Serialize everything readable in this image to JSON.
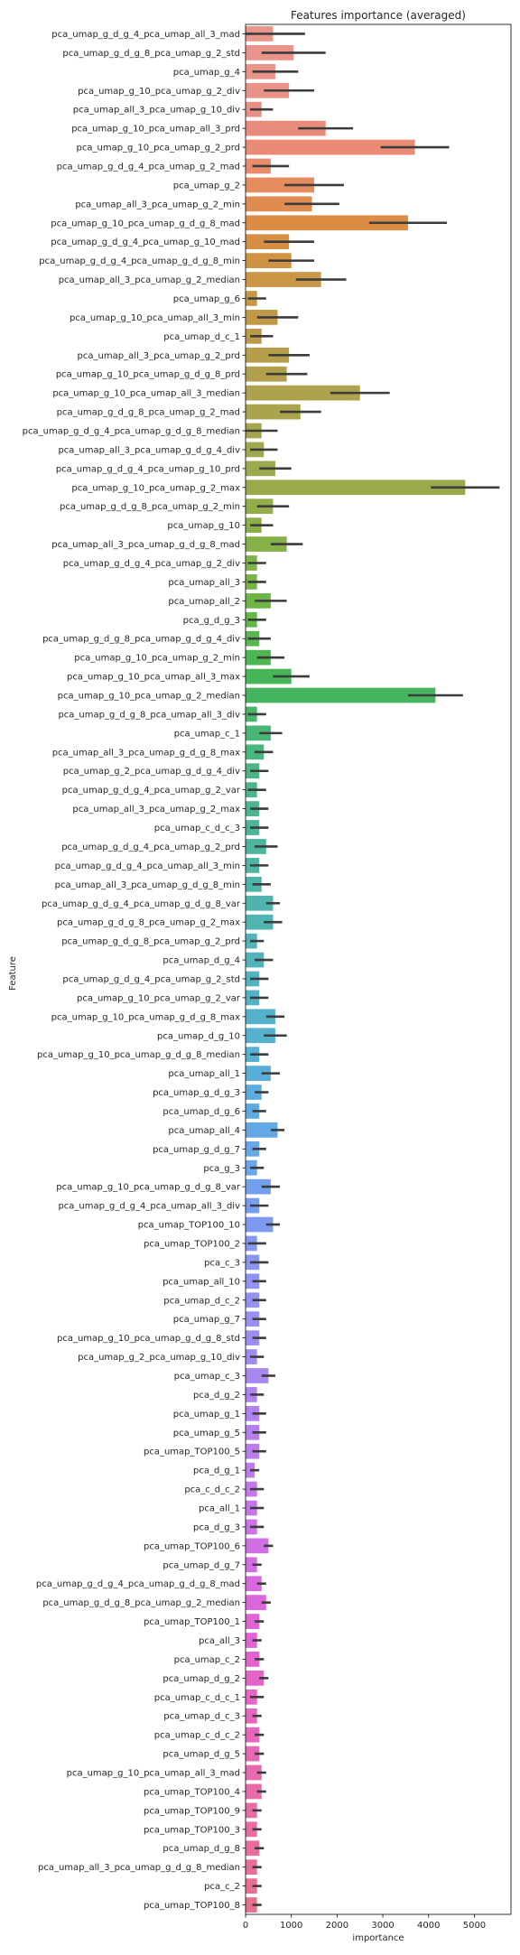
{
  "chart_data": {
    "type": "bar",
    "orientation": "horizontal",
    "title": "Features importance (averaged)",
    "xlabel": "importance",
    "ylabel": "Feature",
    "xlim": [
      0,
      5800
    ],
    "xticks": [
      0,
      1000,
      2000,
      3000,
      4000,
      5000
    ],
    "categories": [
      "pca_umap_g_d_g_4_pca_umap_all_3_mad",
      "pca_umap_g_d_g_8_pca_umap_g_2_std",
      "pca_umap_g_4",
      "pca_umap_g_10_pca_umap_g_2_div",
      "pca_umap_all_3_pca_umap_g_10_div",
      "pca_umap_g_10_pca_umap_all_3_prd",
      "pca_umap_g_10_pca_umap_g_2_prd",
      "pca_umap_g_d_g_4_pca_umap_g_2_mad",
      "pca_umap_g_2",
      "pca_umap_all_3_pca_umap_g_2_min",
      "pca_umap_g_10_pca_umap_g_d_g_8_mad",
      "pca_umap_g_d_g_4_pca_umap_g_10_mad",
      "pca_umap_g_d_g_4_pca_umap_g_d_g_8_min",
      "pca_umap_all_3_pca_umap_g_2_median",
      "pca_umap_g_6",
      "pca_umap_g_10_pca_umap_all_3_min",
      "pca_umap_d_c_1",
      "pca_umap_all_3_pca_umap_g_2_prd",
      "pca_umap_g_10_pca_umap_g_d_g_8_prd",
      "pca_umap_g_10_pca_umap_all_3_median",
      "pca_umap_g_d_g_8_pca_umap_g_2_mad",
      "pca_umap_g_d_g_4_pca_umap_g_d_g_8_median",
      "pca_umap_all_3_pca_umap_g_d_g_4_div",
      "pca_umap_g_d_g_4_pca_umap_g_10_prd",
      "pca_umap_g_10_pca_umap_g_2_max",
      "pca_umap_g_d_g_8_pca_umap_g_2_min",
      "pca_umap_g_10",
      "pca_umap_all_3_pca_umap_g_d_g_8_mad",
      "pca_umap_g_d_g_4_pca_umap_g_2_div",
      "pca_umap_all_3",
      "pca_umap_all_2",
      "pca_g_d_g_3",
      "pca_umap_g_d_g_8_pca_umap_g_d_g_4_div",
      "pca_umap_g_10_pca_umap_g_2_min",
      "pca_umap_g_10_pca_umap_all_3_max",
      "pca_umap_g_10_pca_umap_g_2_median",
      "pca_umap_g_d_g_8_pca_umap_all_3_div",
      "pca_umap_c_1",
      "pca_umap_all_3_pca_umap_g_d_g_8_max",
      "pca_umap_g_2_pca_umap_g_d_g_4_div",
      "pca_umap_g_d_g_4_pca_umap_g_2_var",
      "pca_umap_all_3_pca_umap_g_2_max",
      "pca_umap_c_d_c_3",
      "pca_umap_g_d_g_4_pca_umap_g_2_prd",
      "pca_umap_g_d_g_4_pca_umap_all_3_min",
      "pca_umap_all_3_pca_umap_g_d_g_8_min",
      "pca_umap_g_d_g_4_pca_umap_g_d_g_8_var",
      "pca_umap_g_d_g_8_pca_umap_g_2_max",
      "pca_umap_g_d_g_8_pca_umap_g_2_prd",
      "pca_umap_d_g_4",
      "pca_umap_g_d_g_4_pca_umap_g_2_std",
      "pca_umap_g_10_pca_umap_g_2_var",
      "pca_umap_g_10_pca_umap_g_d_g_8_max",
      "pca_umap_d_g_10",
      "pca_umap_g_10_pca_umap_g_d_g_8_median",
      "pca_umap_all_1",
      "pca_umap_g_d_g_3",
      "pca_umap_d_g_6",
      "pca_umap_all_4",
      "pca_umap_g_d_g_7",
      "pca_g_3",
      "pca_umap_g_10_pca_umap_g_d_g_8_var",
      "pca_umap_g_d_g_4_pca_umap_all_3_div",
      "pca_umap_TOP100_10",
      "pca_umap_TOP100_2",
      "pca_c_3",
      "pca_umap_all_10",
      "pca_umap_d_c_2",
      "pca_umap_g_7",
      "pca_umap_g_10_pca_umap_g_d_g_8_std",
      "pca_umap_g_2_pca_umap_g_10_div",
      "pca_umap_c_3",
      "pca_d_g_2",
      "pca_umap_g_1",
      "pca_umap_g_5",
      "pca_umap_TOP100_5",
      "pca_d_g_1",
      "pca_c_d_c_2",
      "pca_all_1",
      "pca_d_g_3",
      "pca_umap_TOP100_6",
      "pca_umap_d_g_7",
      "pca_umap_g_d_g_4_pca_umap_g_d_g_8_mad",
      "pca_umap_g_d_g_8_pca_umap_g_2_median",
      "pca_umap_TOP100_1",
      "pca_all_3",
      "pca_umap_c_2",
      "pca_umap_d_g_2",
      "pca_umap_c_d_c_1",
      "pca_umap_d_c_3",
      "pca_umap_c_d_c_2",
      "pca_umap_d_g_5",
      "pca_umap_g_10_pca_umap_all_3_mad",
      "pca_umap_TOP100_4",
      "pca_umap_TOP100_9",
      "pca_umap_TOP100_3",
      "pca_umap_d_g_8",
      "pca_umap_all_3_pca_umap_g_d_g_8_median",
      "pca_c_2",
      "pca_umap_TOP100_8"
    ],
    "values": [
      600,
      1050,
      650,
      950,
      350,
      1750,
      3700,
      550,
      1500,
      1450,
      3550,
      950,
      1000,
      1650,
      250,
      700,
      350,
      950,
      900,
      2500,
      1200,
      350,
      400,
      650,
      4800,
      600,
      350,
      900,
      250,
      250,
      550,
      250,
      300,
      550,
      1000,
      4150,
      250,
      550,
      400,
      300,
      250,
      300,
      300,
      450,
      300,
      350,
      600,
      600,
      250,
      400,
      300,
      300,
      650,
      650,
      300,
      550,
      350,
      300,
      700,
      300,
      250,
      550,
      300,
      600,
      250,
      300,
      300,
      300,
      300,
      300,
      250,
      500,
      250,
      300,
      300,
      300,
      200,
      250,
      250,
      250,
      500,
      250,
      350,
      450,
      300,
      250,
      300,
      400,
      250,
      250,
      300,
      300,
      350,
      350,
      250,
      250,
      300,
      250,
      250,
      250
    ],
    "errors": [
      700,
      700,
      500,
      550,
      250,
      600,
      750,
      400,
      650,
      600,
      850,
      550,
      500,
      550,
      200,
      450,
      250,
      450,
      450,
      650,
      450,
      350,
      300,
      350,
      750,
      350,
      250,
      350,
      200,
      200,
      350,
      200,
      250,
      300,
      400,
      600,
      200,
      250,
      200,
      200,
      200,
      200,
      200,
      250,
      200,
      200,
      150,
      200,
      150,
      200,
      200,
      200,
      200,
      250,
      200,
      200,
      150,
      150,
      150,
      150,
      150,
      200,
      200,
      150,
      200,
      200,
      150,
      150,
      150,
      150,
      150,
      150,
      150,
      150,
      150,
      150,
      100,
      150,
      150,
      150,
      100,
      100,
      100,
      100,
      100,
      100,
      100,
      100,
      150,
      100,
      100,
      100,
      100,
      100,
      100,
      100,
      100,
      100,
      100,
      100
    ],
    "colors": [
      "#ea958a",
      "#e9938a",
      "#e99489",
      "#e99287",
      "#e99085",
      "#e98c7b",
      "#ea8b76",
      "#e98c6d",
      "#e58c5e",
      "#e08b50",
      "#dd8c46",
      "#d68f43",
      "#d09344",
      "#cb9646",
      "#c59747",
      "#c09948",
      "#bb9b49",
      "#b79e4b",
      "#b2a04c",
      "#aea24c",
      "#aaa44d",
      "#a6a54d",
      "#a2a84d",
      "#9da94d",
      "#98aa4c",
      "#93ad4b",
      "#8daf4a",
      "#86b149",
      "#7fb247",
      "#77b347",
      "#6eb548",
      "#64b64a",
      "#59b74d",
      "#4db650",
      "#47b658",
      "#46b562",
      "#47b66b",
      "#48b674",
      "#49b67c",
      "#4bb683",
      "#4bb68a",
      "#4db690",
      "#4db597",
      "#4eb59d",
      "#4eb5a2",
      "#4fb5a8",
      "#50b4ad",
      "#50b4b2",
      "#51b4b7",
      "#52b3bb",
      "#53b3c0",
      "#54b2c5",
      "#55b1c9",
      "#55b1cd",
      "#57b0d2",
      "#58aed6",
      "#5aaddc",
      "#5dabe1",
      "#62a8e5",
      "#66a6e9",
      "#6ca3eb",
      "#72a0ec",
      "#789dee",
      "#7e9af0",
      "#8597f1",
      "#8a95f0",
      "#8f93f1",
      "#9491f1",
      "#998ff1",
      "#9e8cf1",
      "#a38af0",
      "#a887ef",
      "#ad84ef",
      "#b182ef",
      "#b580ed",
      "#b97eec",
      "#be7beb",
      "#c278e9",
      "#c675e8",
      "#cb72e6",
      "#cf6fe4",
      "#d36ce1",
      "#d769de",
      "#db66da",
      "#de64d6",
      "#e063d1",
      "#e263cc",
      "#e364c7",
      "#e465c2",
      "#e566bd",
      "#e667b8",
      "#e768b3",
      "#e769ae",
      "#e76aa9",
      "#e86ba4",
      "#e86c9f",
      "#e86d9a",
      "#e86e95",
      "#e96f91",
      "#e9708d"
    ]
  }
}
